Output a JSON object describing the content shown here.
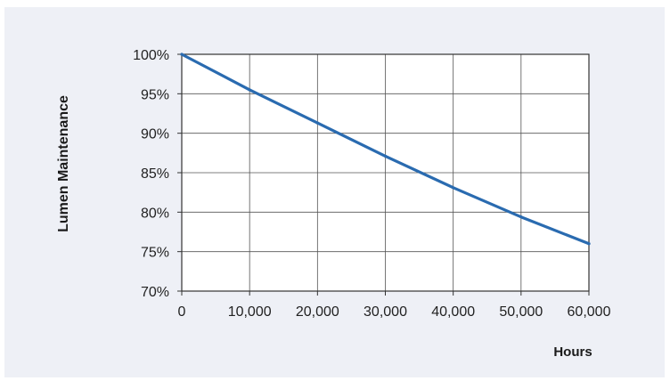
{
  "chart_data": {
    "type": "line",
    "title": "",
    "xlabel": "Hours",
    "ylabel": "Lumen Maintenance",
    "xlim": [
      0,
      60000
    ],
    "ylim": [
      70,
      100
    ],
    "x_ticks": [
      0,
      10000,
      20000,
      30000,
      40000,
      50000,
      60000
    ],
    "x_tick_labels": [
      "0",
      "10,000",
      "20,000",
      "30,000",
      "40,000",
      "50,000",
      "60,000"
    ],
    "y_ticks": [
      70,
      75,
      80,
      85,
      90,
      95,
      100
    ],
    "y_tick_labels": [
      "70%",
      "75%",
      "80%",
      "85%",
      "90%",
      "95%",
      "100%"
    ],
    "grid": true,
    "legend": "none",
    "series": [
      {
        "color": "#2a6bb0",
        "x": [
          0,
          10000,
          20000,
          30000,
          40000,
          50000,
          60000
        ],
        "y": [
          100,
          95.5,
          91.3,
          87.1,
          83.1,
          79.4,
          76
        ]
      }
    ],
    "colors": {
      "background": "#eef0f6",
      "plot_area": "#ffffff",
      "grid": "#555555",
      "line": "#2a6bb0"
    }
  }
}
